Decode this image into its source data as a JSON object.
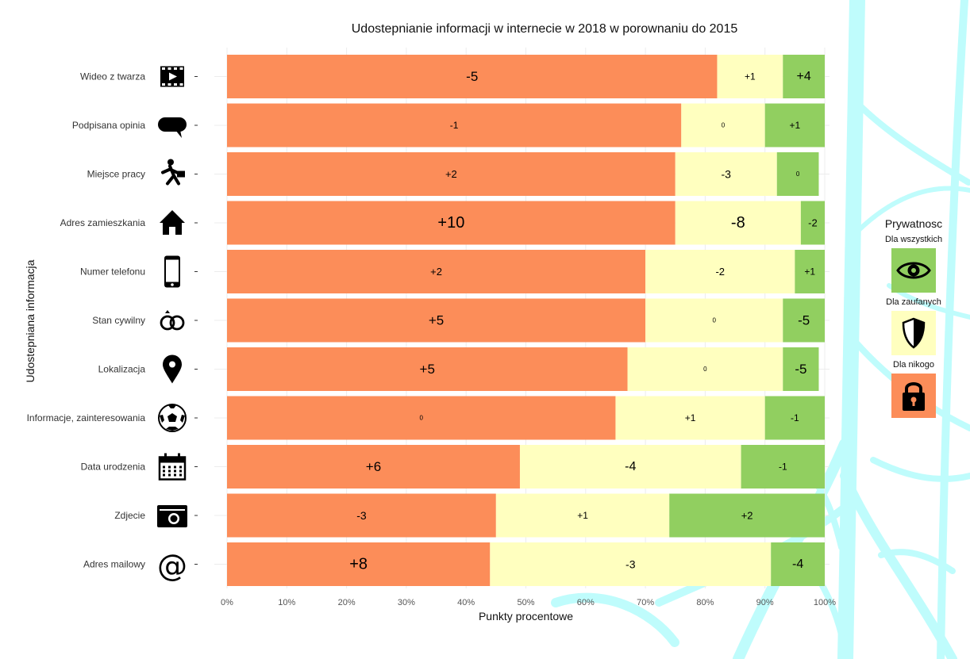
{
  "chart_data": {
    "type": "bar",
    "orientation": "horizontal",
    "stacked": true,
    "title": "Udostepnianie informacji w internecie w 2018 w porownaniu do 2015",
    "xlabel": "Punkty procentowe",
    "ylabel": "Udostepniana informacja",
    "xlim": [
      0,
      100
    ],
    "x_ticks": [
      "0%",
      "10%",
      "20%",
      "30%",
      "40%",
      "50%",
      "60%",
      "70%",
      "80%",
      "90%",
      "100%"
    ],
    "categories": [
      "Wideo z twarza",
      "Podpisana opinia",
      "Miejsce pracy",
      "Adres zamieszkania",
      "Numer telefonu",
      "Stan cywilny",
      "Lokalizacja",
      "Informacje, zainteresowania",
      "Data urodzenia",
      "Zdjecie",
      "Adres mailowy"
    ],
    "category_icons": [
      "film-icon",
      "speech-bubble-icon",
      "businessman-icon",
      "house-icon",
      "smartphone-icon",
      "rings-icon",
      "location-pin-icon",
      "soccer-ball-icon",
      "calendar-icon",
      "camera-icon",
      "at-sign-icon"
    ],
    "series": [
      {
        "name": "Dla nikogo",
        "color": "#FC8D59",
        "values": [
          82,
          76,
          75,
          75,
          70,
          70,
          67,
          65,
          49,
          45,
          44
        ],
        "changes": [
          "-5",
          "-1",
          "+2",
          "+10",
          "+2",
          "+5",
          "+5",
          "0",
          "+6",
          "-3",
          "+8"
        ]
      },
      {
        "name": "Dla zaufanych",
        "color": "#FFFFBF",
        "values": [
          11,
          14,
          17,
          21,
          25,
          23,
          26,
          25,
          37,
          29,
          47
        ],
        "changes": [
          "+1",
          "0",
          "-3",
          "-8",
          "-2",
          "0",
          "0",
          "+1",
          "-4",
          "+1",
          "-3"
        ]
      },
      {
        "name": "Dla wszystkich",
        "color": "#91CF60",
        "values": [
          7,
          10,
          7,
          4,
          5,
          7,
          6,
          10,
          14,
          26,
          9
        ],
        "changes": [
          "+4",
          "+1",
          "0",
          "-2",
          "+1",
          "-5",
          "-5",
          "-1",
          "-1",
          "+2",
          "-4"
        ]
      }
    ],
    "grid": true,
    "legend_position": "right"
  },
  "legend": {
    "title": "Prywatnosc",
    "items": [
      {
        "label": "Dla wszystkich",
        "color": "#91CF60",
        "icon": "eye-icon"
      },
      {
        "label": "Dla zaufanych",
        "color": "#FFFFBF",
        "icon": "shield-icon"
      },
      {
        "label": "Dla nikogo",
        "color": "#FC8D59",
        "icon": "padlock-icon"
      }
    ]
  },
  "colors": {
    "background_web": "#BFFCFC"
  }
}
